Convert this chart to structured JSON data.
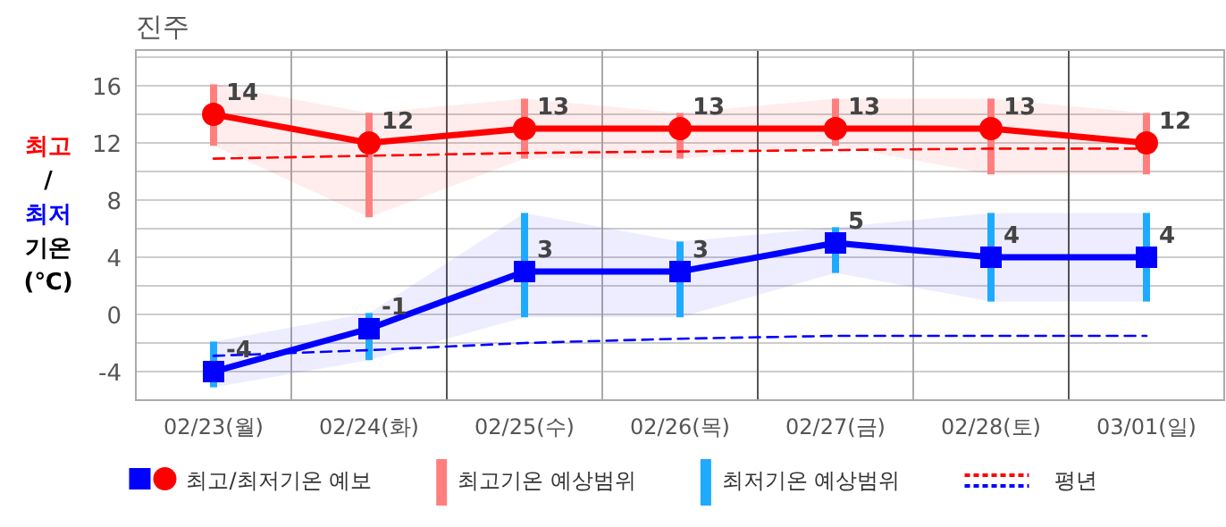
{
  "chart_data": {
    "type": "line",
    "title": "진주",
    "ylabel": "최고\n/\n최저\n기온\n(℃)",
    "categories": [
      "02/23(월)",
      "02/24(화)",
      "02/25(수)",
      "02/26(목)",
      "02/27(금)",
      "02/28(토)",
      "03/01(일)"
    ],
    "ylim": [
      -6,
      18.5
    ],
    "yticks": [
      -4,
      {
        "value": -2,
        "label": null
      },
      0,
      {
        "value": 2,
        "label": null
      },
      4,
      {
        "value": 6,
        "label": null
      },
      8,
      {
        "value": 10,
        "label": null
      },
      12,
      {
        "value": 14,
        "label": null
      },
      16,
      {
        "value": 18,
        "label": null
      }
    ],
    "grid": true,
    "legend": "bottom",
    "series": [
      {
        "name": "최고/최저기온 예보",
        "color": "#ff0000",
        "marker": "circle",
        "line_style": "solid",
        "values": [
          14,
          12,
          13,
          13,
          13,
          13,
          12
        ],
        "lower": [
          11.8,
          6.8,
          10.9,
          10.9,
          11.8,
          9.8,
          9.8
        ],
        "upper": [
          16.1,
          14.1,
          15.1,
          14.1,
          15.1,
          15.1,
          14.1
        ],
        "value_labels": [
          "14",
          "12",
          "13",
          "13",
          "13",
          "13",
          "12"
        ]
      },
      {
        "color": "#0000ff",
        "marker": "square",
        "line_style": "solid",
        "values": [
          -4,
          -1,
          3,
          3,
          5,
          4,
          4
        ],
        "lower": [
          -5.1,
          -3.2,
          -0.2,
          -0.2,
          2.9,
          0.9,
          0.9
        ],
        "upper": [
          -1.9,
          0.1,
          7.1,
          5.1,
          6.1,
          7.1,
          7.1
        ],
        "value_labels": [
          "-4",
          "-1",
          "3",
          "3",
          "5",
          "4",
          "4"
        ]
      },
      {
        "name": "최고기온 예상범위",
        "type": "bar",
        "color": "#ff7f7f",
        "base": [
          11.8,
          6.8,
          10.9,
          10.9,
          11.8,
          9.8,
          9.8
        ],
        "values": [
          4.3,
          7.3,
          4.2,
          3.2,
          3.3,
          5.3,
          4.3
        ]
      },
      {
        "name": "최저기온 예상범위",
        "type": "bar",
        "color": "#1eaaff",
        "base": [
          -5.1,
          -3.2,
          -0.2,
          -0.2,
          2.9,
          0.9,
          0.9
        ],
        "values": [
          3.2,
          3.3,
          7.3,
          5.3,
          3.2,
          6.2,
          6.2
        ]
      },
      {
        "name": "평년",
        "color": "#ff0000",
        "line_style": "dashed",
        "marker": "none",
        "values": [
          10.9,
          11.1,
          11.3,
          11.4,
          11.5,
          11.6,
          11.6
        ]
      },
      {
        "color": "#0000ff",
        "line_style": "dashed",
        "marker": "none",
        "values": [
          -2.9,
          -2.5,
          -2.0,
          -1.7,
          -1.5,
          -1.5,
          -1.5
        ]
      }
    ]
  }
}
